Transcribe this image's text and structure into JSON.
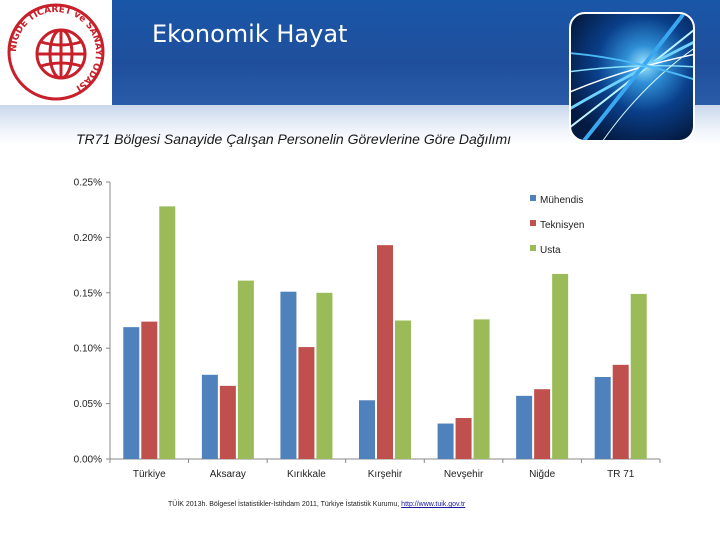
{
  "header": {
    "title": "Ekonomik Hayat",
    "logo_text": "NİĞDE TİCARET ve SANAYİ ODASI"
  },
  "colors": {
    "header": "#1f4f9c",
    "series": [
      "#4f81bd",
      "#c0504d",
      "#9bbb59"
    ]
  },
  "chart_data": {
    "type": "bar",
    "title": "TR71 Bölgesi Sanayide Çalışan Personelin Görevlerine Göre Dağılımı",
    "categories": [
      "Türkiye",
      "Aksaray",
      "Kırıkkale",
      "Kırşehir",
      "Nevşehir",
      "Niğde",
      "TR 71"
    ],
    "series": [
      {
        "name": "Mühendis",
        "values": [
          0.119,
          0.076,
          0.151,
          0.053,
          0.032,
          0.057,
          0.074
        ]
      },
      {
        "name": "Teknisyen",
        "values": [
          0.124,
          0.066,
          0.101,
          0.193,
          0.037,
          0.063,
          0.085
        ]
      },
      {
        "name": "Usta",
        "values": [
          0.228,
          0.161,
          0.15,
          0.125,
          0.126,
          0.167,
          0.149
        ]
      }
    ],
    "ylim": [
      0,
      0.25
    ],
    "yticks": [
      "0.00%",
      "0.05%",
      "0.10%",
      "0.15%",
      "0.20%",
      "0.25%"
    ],
    "ytick_values": [
      0,
      0.05,
      0.1,
      0.15,
      0.2,
      0.25
    ],
    "legend_position": "top-right",
    "grid": false
  },
  "source": {
    "text": "TÜİK 2013h. Bölgesel İstatistikler-İstihdam 2011, Türkiye İstatistik Kurumu, ",
    "link": "http://www.tuik.gov.tr"
  }
}
